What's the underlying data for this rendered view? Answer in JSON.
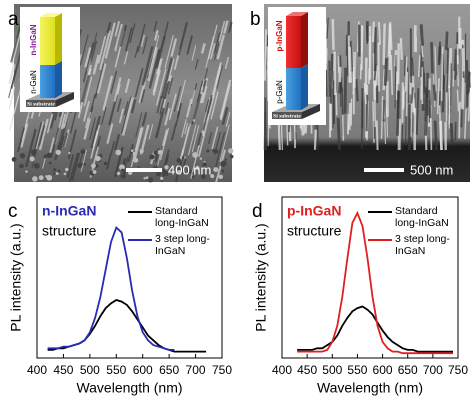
{
  "sem_images": [
    {
      "label": "a",
      "scale_bar": "400 nm",
      "inset": {
        "top_layer": "n-InGaN",
        "bottom_layer": "n-GaN",
        "substrate": "Si substrate"
      }
    },
    {
      "label": "b",
      "scale_bar": "500 nm",
      "inset": {
        "top_layer": "p-InGaN",
        "bottom_layer": "p-GaN",
        "substrate": "Si substrate"
      }
    }
  ],
  "chart_data": [
    {
      "type": "line",
      "label": "c",
      "title": "n-InGaN",
      "subtitle": "structure",
      "xlabel": "Wavelength (nm)",
      "ylabel": "PL intensity (a.u.)",
      "x": [
        420,
        430,
        440,
        450,
        460,
        470,
        480,
        490,
        500,
        510,
        520,
        530,
        540,
        550,
        560,
        570,
        580,
        590,
        600,
        610,
        620,
        630,
        640,
        650,
        660,
        670,
        680,
        690,
        700,
        710,
        720
      ],
      "xlim": [
        400,
        750
      ],
      "xticks": [
        400,
        450,
        500,
        550,
        600,
        650,
        700,
        750
      ],
      "ylim": [
        0,
        1
      ],
      "series": [
        {
          "name": "Standard long-InGaN",
          "color": "#000000",
          "values": [
            0.05,
            0.05,
            0.06,
            0.06,
            0.07,
            0.08,
            0.09,
            0.11,
            0.15,
            0.2,
            0.26,
            0.31,
            0.34,
            0.36,
            0.35,
            0.33,
            0.29,
            0.24,
            0.19,
            0.14,
            0.11,
            0.08,
            0.06,
            0.05,
            0.04,
            0.04,
            0.04,
            0.04,
            0.04,
            0.04,
            0.04
          ]
        },
        {
          "name": "3 step long-InGaN",
          "color": "#2a2ab8",
          "values": [
            0.06,
            0.06,
            0.06,
            0.07,
            0.07,
            0.08,
            0.09,
            0.11,
            0.16,
            0.25,
            0.38,
            0.55,
            0.72,
            0.81,
            0.78,
            0.62,
            0.42,
            0.26,
            0.16,
            0.11,
            0.08,
            0.07,
            0.06,
            0.05,
            0.05,
            null,
            null,
            null,
            null,
            null,
            null
          ]
        }
      ]
    },
    {
      "type": "line",
      "label": "d",
      "title": "p-InGaN",
      "subtitle": "structure",
      "xlabel": "Wavelength (nm)",
      "ylabel": "PL intensity (a.u.)",
      "x": [
        430,
        440,
        450,
        460,
        470,
        480,
        490,
        500,
        510,
        520,
        530,
        540,
        550,
        560,
        570,
        580,
        590,
        600,
        610,
        620,
        630,
        640,
        650,
        660,
        670,
        680,
        690,
        700,
        710,
        720,
        730,
        740
      ],
      "xlim": [
        400,
        750
      ],
      "xticks": [
        400,
        450,
        500,
        550,
        600,
        650,
        700,
        750
      ],
      "ylim": [
        0,
        1
      ],
      "series": [
        {
          "name": "Standard long-InGaN",
          "color": "#000000",
          "values": [
            0.05,
            0.05,
            0.05,
            0.05,
            0.06,
            0.06,
            0.08,
            0.1,
            0.14,
            0.2,
            0.25,
            0.29,
            0.31,
            0.32,
            0.3,
            0.27,
            0.22,
            0.17,
            0.13,
            0.1,
            0.08,
            0.06,
            0.05,
            0.05,
            0.04,
            0.04,
            0.04,
            0.04,
            0.04,
            0.04,
            0.04,
            0.04
          ]
        },
        {
          "name": "3 step long-InGaN",
          "color": "#e02020",
          "values": [
            0.04,
            0.04,
            0.04,
            0.04,
            0.04,
            0.04,
            0.05,
            0.1,
            0.2,
            0.38,
            0.62,
            0.84,
            0.9,
            0.82,
            0.62,
            0.38,
            0.2,
            0.1,
            0.06,
            0.04,
            0.04,
            0.03,
            0.03,
            0.03,
            0.03,
            0.03,
            0.03,
            0.03,
            0.03,
            0.03,
            0.03,
            0.03
          ]
        }
      ]
    }
  ]
}
